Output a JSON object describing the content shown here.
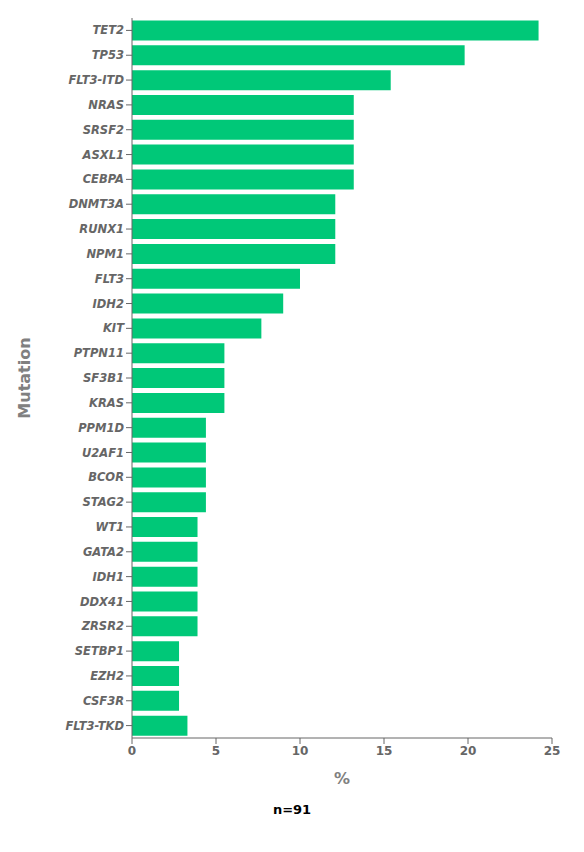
{
  "chart_data": {
    "type": "bar",
    "orientation": "horizontal",
    "xlabel": "%",
    "ylabel": "Mutation",
    "annotations": [
      "n=91"
    ],
    "categories": [
      "TET2",
      "TP53",
      "FLT3-ITD",
      "NRAS",
      "SRSF2",
      "ASXL1",
      "CEBPA",
      "DNMT3A",
      "RUNX1",
      "NPM1",
      "FLT3",
      "IDH2",
      "KIT",
      "PTPN11",
      "SF3B1",
      "KRAS",
      "PPM1D",
      "U2AF1",
      "BCOR",
      "STAG2",
      "WT1",
      "GATA2",
      "IDH1",
      "DDX41",
      "ZRSR2",
      "SETBP1",
      "EZH2",
      "CSF3R",
      "FLT3-TKD"
    ],
    "values": [
      24.2,
      19.8,
      15.4,
      13.2,
      13.2,
      13.2,
      13.2,
      12.1,
      12.1,
      12.1,
      10.0,
      9.0,
      7.7,
      5.5,
      5.5,
      5.5,
      4.4,
      4.4,
      4.4,
      4.4,
      3.9,
      3.9,
      3.9,
      3.9,
      3.9,
      2.8,
      2.8,
      2.8,
      3.3
    ],
    "color": "#00C878",
    "xlim": [
      0,
      25
    ],
    "xticks": [
      0,
      5,
      10,
      15,
      20,
      25
    ],
    "grid": false
  }
}
